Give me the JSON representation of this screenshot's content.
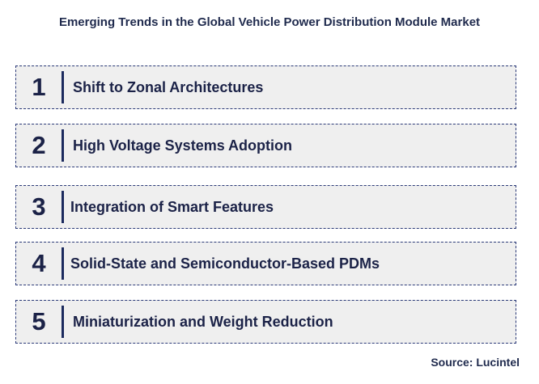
{
  "title": "Emerging Trends in the Global Vehicle Power Distribution Module Market",
  "trends": [
    {
      "number": "1",
      "label": "Shift to Zonal Architectures"
    },
    {
      "number": "2",
      "label": "High Voltage Systems Adoption"
    },
    {
      "number": "3",
      "label": "Integration of Smart Features"
    },
    {
      "number": "4",
      "label": "Solid-State and Semiconductor-Based PDMs"
    },
    {
      "number": "5",
      "label": "Miniaturization and Weight Reduction"
    }
  ],
  "source": "Source: Lucintel"
}
